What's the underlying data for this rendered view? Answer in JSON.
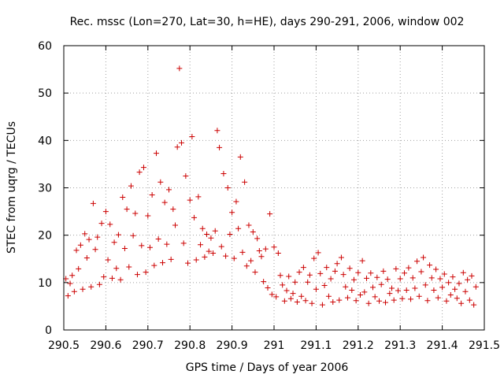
{
  "chart_data": {
    "type": "scatter",
    "title": "Rec. mssc (Lon=270, Lat=30, h=HE), days 290-291, 2006, window 002",
    "xlabel": "GPS time / Days of year 2006",
    "ylabel": "STEC from uqrg / TECUs",
    "xlim": [
      290.5,
      291.5
    ],
    "ylim": [
      0,
      60
    ],
    "x_ticks": [
      290.5,
      290.6,
      290.7,
      290.8,
      290.9,
      291,
      291.1,
      291.2,
      291.3,
      291.4,
      291.5
    ],
    "x_tick_labels": [
      "290.5",
      "290.6",
      "290.7",
      "290.8",
      "290.9",
      "291",
      "291.1",
      "291.2",
      "291.3",
      "291.4",
      "291.5"
    ],
    "y_ticks": [
      0,
      10,
      20,
      30,
      40,
      50,
      60
    ],
    "y_tick_labels": [
      "0",
      "10",
      "20",
      "30",
      "40",
      "50",
      "60"
    ],
    "grid": true,
    "marker": "plus",
    "color": "#cc0000",
    "points": [
      [
        290.505,
        10.8
      ],
      [
        290.51,
        7.2
      ],
      [
        290.515,
        9.8
      ],
      [
        290.52,
        11.5
      ],
      [
        290.525,
        8.1
      ],
      [
        290.53,
        16.8
      ],
      [
        290.535,
        12.9
      ],
      [
        290.54,
        17.9
      ],
      [
        290.545,
        8.6
      ],
      [
        290.55,
        20.3
      ],
      [
        290.555,
        15.2
      ],
      [
        290.56,
        19.1
      ],
      [
        290.565,
        9.1
      ],
      [
        290.57,
        26.7
      ],
      [
        290.575,
        17.0
      ],
      [
        290.58,
        19.6
      ],
      [
        290.585,
        9.6
      ],
      [
        290.59,
        22.5
      ],
      [
        290.595,
        11.2
      ],
      [
        290.6,
        25.0
      ],
      [
        290.605,
        14.8
      ],
      [
        290.61,
        22.3
      ],
      [
        290.615,
        10.9
      ],
      [
        290.62,
        18.5
      ],
      [
        290.625,
        13.0
      ],
      [
        290.63,
        20.1
      ],
      [
        290.635,
        10.6
      ],
      [
        290.64,
        28.0
      ],
      [
        290.645,
        17.2
      ],
      [
        290.65,
        25.5
      ],
      [
        290.655,
        13.3
      ],
      [
        290.66,
        30.4
      ],
      [
        290.665,
        19.9
      ],
      [
        290.67,
        24.6
      ],
      [
        290.675,
        11.7
      ],
      [
        290.68,
        33.3
      ],
      [
        290.685,
        17.8
      ],
      [
        290.69,
        34.3
      ],
      [
        290.695,
        12.2
      ],
      [
        290.7,
        24.1
      ],
      [
        290.705,
        17.4
      ],
      [
        290.71,
        28.5
      ],
      [
        290.715,
        13.6
      ],
      [
        290.72,
        37.3
      ],
      [
        290.725,
        19.2
      ],
      [
        290.73,
        31.2
      ],
      [
        290.735,
        14.2
      ],
      [
        290.74,
        26.9
      ],
      [
        290.745,
        18.1
      ],
      [
        290.75,
        29.6
      ],
      [
        290.755,
        14.9
      ],
      [
        290.76,
        25.5
      ],
      [
        290.765,
        22.1
      ],
      [
        290.77,
        38.6
      ],
      [
        290.775,
        55.2
      ],
      [
        290.78,
        39.5
      ],
      [
        290.785,
        18.3
      ],
      [
        290.79,
        32.5
      ],
      [
        290.795,
        14.1
      ],
      [
        290.8,
        27.4
      ],
      [
        290.805,
        40.8
      ],
      [
        290.81,
        23.7
      ],
      [
        290.815,
        14.8
      ],
      [
        290.82,
        28.1
      ],
      [
        290.825,
        18.0
      ],
      [
        290.83,
        21.4
      ],
      [
        290.835,
        15.4
      ],
      [
        290.84,
        20.2
      ],
      [
        290.845,
        16.6
      ],
      [
        290.85,
        19.4
      ],
      [
        290.855,
        16.2
      ],
      [
        290.86,
        20.9
      ],
      [
        290.865,
        42.1
      ],
      [
        290.87,
        38.5
      ],
      [
        290.875,
        17.6
      ],
      [
        290.88,
        33.0
      ],
      [
        290.885,
        15.6
      ],
      [
        290.89,
        30.0
      ],
      [
        290.895,
        20.2
      ],
      [
        290.9,
        24.8
      ],
      [
        290.905,
        15.1
      ],
      [
        290.91,
        27.1
      ],
      [
        290.915,
        21.4
      ],
      [
        290.92,
        36.5
      ],
      [
        290.925,
        16.4
      ],
      [
        290.93,
        31.2
      ],
      [
        290.935,
        13.5
      ],
      [
        290.94,
        22.1
      ],
      [
        290.945,
        14.6
      ],
      [
        290.95,
        20.7
      ],
      [
        290.955,
        12.2
      ],
      [
        290.96,
        19.3
      ],
      [
        290.965,
        16.7
      ],
      [
        290.97,
        15.5
      ],
      [
        290.975,
        10.2
      ],
      [
        290.98,
        17.1
      ],
      [
        290.985,
        8.9
      ],
      [
        290.99,
        24.5
      ],
      [
        290.995,
        7.5
      ],
      [
        291.0,
        17.5
      ],
      [
        291.005,
        7.0
      ],
      [
        291.01,
        16.2
      ],
      [
        291.015,
        11.5
      ],
      [
        291.02,
        9.5
      ],
      [
        291.025,
        6.1
      ],
      [
        291.03,
        8.3
      ],
      [
        291.035,
        11.3
      ],
      [
        291.04,
        6.6
      ],
      [
        291.045,
        7.7
      ],
      [
        291.05,
        10.1
      ],
      [
        291.055,
        5.9
      ],
      [
        291.06,
        12.2
      ],
      [
        291.065,
        7.1
      ],
      [
        291.07,
        13.2
      ],
      [
        291.075,
        6.2
      ],
      [
        291.08,
        10.1
      ],
      [
        291.085,
        11.6
      ],
      [
        291.09,
        5.6
      ],
      [
        291.095,
        15.1
      ],
      [
        291.1,
        8.6
      ],
      [
        291.105,
        16.3
      ],
      [
        291.11,
        11.9
      ],
      [
        291.115,
        5.3
      ],
      [
        291.12,
        9.4
      ],
      [
        291.125,
        13.2
      ],
      [
        291.13,
        7.1
      ],
      [
        291.135,
        10.8
      ],
      [
        291.14,
        5.9
      ],
      [
        291.145,
        12.4
      ],
      [
        291.15,
        14.0
      ],
      [
        291.155,
        6.3
      ],
      [
        291.16,
        15.3
      ],
      [
        291.165,
        11.7
      ],
      [
        291.17,
        9.1
      ],
      [
        291.175,
        6.8
      ],
      [
        291.18,
        13.0
      ],
      [
        291.185,
        8.4
      ],
      [
        291.19,
        10.6
      ],
      [
        291.195,
        6.2
      ],
      [
        291.2,
        12.1
      ],
      [
        291.205,
        7.4
      ],
      [
        291.21,
        14.6
      ],
      [
        291.215,
        8.0
      ],
      [
        291.22,
        10.9
      ],
      [
        291.225,
        5.6
      ],
      [
        291.23,
        12.0
      ],
      [
        291.235,
        9.0
      ],
      [
        291.24,
        7.0
      ],
      [
        291.245,
        11.1
      ],
      [
        291.25,
        6.1
      ],
      [
        291.255,
        9.6
      ],
      [
        291.26,
        12.4
      ],
      [
        291.265,
        5.8
      ],
      [
        291.27,
        10.7
      ],
      [
        291.275,
        7.7
      ],
      [
        291.28,
        8.8
      ],
      [
        291.285,
        6.3
      ],
      [
        291.29,
        12.9
      ],
      [
        291.295,
        8.3
      ],
      [
        291.3,
        10.8
      ],
      [
        291.305,
        6.6
      ],
      [
        291.31,
        12.0
      ],
      [
        291.315,
        8.4
      ],
      [
        291.32,
        13.1
      ],
      [
        291.325,
        6.5
      ],
      [
        291.33,
        11.0
      ],
      [
        291.335,
        8.8
      ],
      [
        291.34,
        14.5
      ],
      [
        291.345,
        7.1
      ],
      [
        291.35,
        12.3
      ],
      [
        291.355,
        15.3
      ],
      [
        291.36,
        9.5
      ],
      [
        291.365,
        6.2
      ],
      [
        291.37,
        13.7
      ],
      [
        291.375,
        11.0
      ],
      [
        291.38,
        8.4
      ],
      [
        291.385,
        12.8
      ],
      [
        291.39,
        6.8
      ],
      [
        291.395,
        10.8
      ],
      [
        291.4,
        9.0
      ],
      [
        291.405,
        11.8
      ],
      [
        291.41,
        6.1
      ],
      [
        291.415,
        10.0
      ],
      [
        291.42,
        7.4
      ],
      [
        291.425,
        11.2
      ],
      [
        291.43,
        8.6
      ],
      [
        291.435,
        6.7
      ],
      [
        291.44,
        9.8
      ],
      [
        291.445,
        5.6
      ],
      [
        291.45,
        12.1
      ],
      [
        291.455,
        8.1
      ],
      [
        291.46,
        10.6
      ],
      [
        291.465,
        6.3
      ],
      [
        291.47,
        11.4
      ],
      [
        291.475,
        5.3
      ],
      [
        291.48,
        9.1
      ]
    ]
  }
}
